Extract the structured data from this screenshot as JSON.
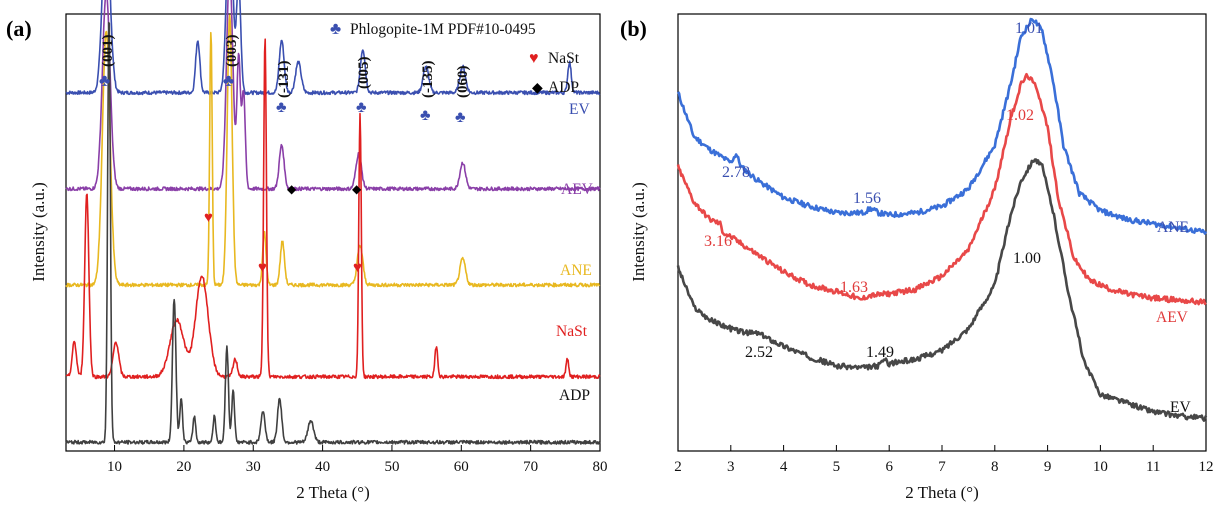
{
  "panels": [
    {
      "letter": "(a)",
      "xlabel": "2 Theta (°)",
      "ylabel": "Intensity (a.u.)",
      "x_ticks": [
        "10",
        "20",
        "30",
        "40",
        "50",
        "60",
        "70",
        "80"
      ],
      "legend": [
        {
          "symbol": "club",
          "color": "#3a4fb0",
          "text": "Phlogopite-1M PDF#10-0495"
        },
        {
          "symbol": "heart",
          "color": "#e02020",
          "text": "NaSt"
        },
        {
          "symbol": "diamond",
          "color": "#000000",
          "text": "ADP"
        }
      ],
      "peak_tags": [
        "(001)",
        "(003)",
        "(-131)",
        "(005)",
        "(-135)",
        "(060)"
      ],
      "series_labels": [
        "EV",
        "AEV",
        "ANE",
        "NaSt",
        "ADP"
      ]
    },
    {
      "letter": "(b)",
      "xlabel": "2 Theta (°)",
      "ylabel": "Intensity (a.u.)",
      "x_ticks": [
        "2",
        "3",
        "4",
        "5",
        "6",
        "7",
        "8",
        "9",
        "10",
        "11",
        "12"
      ],
      "series_labels": [
        "ANE",
        "AEV",
        "EV"
      ],
      "annotations": [
        {
          "text": "1.01",
          "color": "#3a4fb0"
        },
        {
          "text": "2.78",
          "color": "#3a4fb0"
        },
        {
          "text": "1.56",
          "color": "#3a4fb0"
        },
        {
          "text": "1.02",
          "color": "#e03a3a"
        },
        {
          "text": "3.16",
          "color": "#e03a3a"
        },
        {
          "text": "1.63",
          "color": "#e03a3a"
        },
        {
          "text": "1.00",
          "color": "#111111"
        },
        {
          "text": "2.52",
          "color": "#111111"
        },
        {
          "text": "1.49",
          "color": "#111111"
        }
      ]
    }
  ],
  "chart_data": [
    {
      "type": "line",
      "xlabel": "2 Theta (°)",
      "ylabel": "Intensity (a.u.)",
      "xlim": [
        3,
        80
      ],
      "x_ticks": [
        10,
        20,
        30,
        40,
        50,
        60,
        70,
        80
      ],
      "y_ticks_shown": false,
      "grid": false,
      "legend_position": "top-right",
      "legend": [
        "Phlogopite-1M PDF#10-0495",
        "NaSt",
        "ADP"
      ],
      "series": [
        {
          "name": "EV",
          "color": "#3a4fb0",
          "baseline": 0.82,
          "peaks": [
            [
              8.8,
              0.4,
              0.55
            ],
            [
              22.0,
              0.12,
              0.3
            ],
            [
              26.6,
              0.42,
              0.45
            ],
            [
              27.9,
              0.25,
              0.3
            ],
            [
              34.1,
              0.12,
              0.35
            ],
            [
              36.5,
              0.07,
              0.4
            ],
            [
              45.8,
              0.1,
              0.35
            ],
            [
              54.9,
              0.06,
              0.4
            ],
            [
              60.2,
              0.06,
              0.4
            ],
            [
              75.6,
              0.07,
              0.25
            ]
          ]
        },
        {
          "name": "AEV",
          "color": "#8a3fa8",
          "baseline": 0.6,
          "peaks": [
            [
              8.8,
              0.45,
              0.55
            ],
            [
              26.6,
              0.5,
              0.45
            ],
            [
              27.9,
              0.3,
              0.25
            ],
            [
              28.6,
              0.22,
              0.25
            ],
            [
              34.1,
              0.1,
              0.35
            ],
            [
              45.2,
              0.08,
              0.4
            ],
            [
              60.2,
              0.06,
              0.4
            ]
          ]
        },
        {
          "name": "ANE",
          "color": "#e8b820",
          "baseline": 0.38,
          "peaks": [
            [
              8.8,
              0.58,
              0.55
            ],
            [
              23.9,
              0.58,
              0.18
            ],
            [
              26.6,
              0.62,
              0.35
            ],
            [
              31.6,
              0.12,
              0.25
            ],
            [
              34.2,
              0.1,
              0.3
            ],
            [
              45.4,
              0.09,
              0.4
            ],
            [
              60.2,
              0.06,
              0.4
            ]
          ]
        },
        {
          "name": "NaSt",
          "color": "#e02020",
          "baseline": 0.17,
          "peaks": [
            [
              4.2,
              0.08,
              0.3
            ],
            [
              6.0,
              0.42,
              0.3
            ],
            [
              10.2,
              0.08,
              0.4
            ],
            [
              19.0,
              0.13,
              1.0
            ],
            [
              22.6,
              0.23,
              0.9
            ],
            [
              27.4,
              0.04,
              0.3
            ],
            [
              31.7,
              0.78,
              0.2
            ],
            [
              45.4,
              0.6,
              0.18
            ],
            [
              56.4,
              0.07,
              0.2
            ],
            [
              75.3,
              0.04,
              0.2
            ]
          ]
        },
        {
          "name": "ADP",
          "color": "#404040",
          "baseline": 0.02,
          "peaks": [
            [
              9.2,
              0.98,
              0.2
            ],
            [
              18.6,
              0.33,
              0.25
            ],
            [
              19.6,
              0.1,
              0.2
            ],
            [
              21.5,
              0.06,
              0.2
            ],
            [
              24.4,
              0.06,
              0.2
            ],
            [
              26.2,
              0.22,
              0.22
            ],
            [
              27.1,
              0.12,
              0.2
            ],
            [
              31.4,
              0.07,
              0.3
            ],
            [
              33.8,
              0.1,
              0.3
            ],
            [
              38.3,
              0.05,
              0.4
            ]
          ]
        }
      ]
    },
    {
      "type": "line",
      "xlabel": "2 Theta (°)",
      "ylabel": "Intensity (a.u.)",
      "xlim": [
        2,
        12
      ],
      "x_ticks": [
        2,
        3,
        4,
        5,
        6,
        7,
        8,
        9,
        10,
        11,
        12
      ],
      "y_ticks_shown": false,
      "grid": false,
      "series": [
        {
          "name": "ANE",
          "color": "#3a6fd8",
          "points": [
            [
              2.0,
              0.82
            ],
            [
              2.3,
              0.72
            ],
            [
              2.6,
              0.69
            ],
            [
              3.0,
              0.66
            ],
            [
              3.1,
              0.68
            ],
            [
              3.2,
              0.65
            ],
            [
              3.5,
              0.62
            ],
            [
              4.0,
              0.58
            ],
            [
              4.5,
              0.56
            ],
            [
              5.0,
              0.545
            ],
            [
              5.5,
              0.545
            ],
            [
              5.65,
              0.555
            ],
            [
              5.8,
              0.545
            ],
            [
              6.0,
              0.54
            ],
            [
              6.5,
              0.545
            ],
            [
              7.0,
              0.56
            ],
            [
              7.5,
              0.6
            ],
            [
              8.0,
              0.7
            ],
            [
              8.3,
              0.84
            ],
            [
              8.5,
              0.95
            ],
            [
              8.72,
              0.99
            ],
            [
              8.9,
              0.96
            ],
            [
              9.1,
              0.85
            ],
            [
              9.3,
              0.7
            ],
            [
              9.6,
              0.59
            ],
            [
              10.0,
              0.55
            ],
            [
              10.5,
              0.53
            ],
            [
              11.0,
              0.52
            ],
            [
              11.5,
              0.51
            ],
            [
              12.0,
              0.5
            ]
          ]
        },
        {
          "name": "AEV",
          "color": "#e84848",
          "points": [
            [
              2.0,
              0.65
            ],
            [
              2.3,
              0.57
            ],
            [
              2.6,
              0.53
            ],
            [
              2.8,
              0.52
            ],
            [
              2.85,
              0.5
            ],
            [
              3.0,
              0.49
            ],
            [
              3.5,
              0.45
            ],
            [
              4.0,
              0.41
            ],
            [
              4.5,
              0.38
            ],
            [
              5.0,
              0.365
            ],
            [
              5.3,
              0.355
            ],
            [
              5.45,
              0.345
            ],
            [
              5.6,
              0.355
            ],
            [
              6.0,
              0.36
            ],
            [
              6.5,
              0.37
            ],
            [
              7.0,
              0.4
            ],
            [
              7.5,
              0.46
            ],
            [
              8.0,
              0.6
            ],
            [
              8.3,
              0.76
            ],
            [
              8.5,
              0.84
            ],
            [
              8.62,
              0.86
            ],
            [
              8.8,
              0.83
            ],
            [
              9.0,
              0.74
            ],
            [
              9.2,
              0.58
            ],
            [
              9.5,
              0.44
            ],
            [
              9.8,
              0.39
            ],
            [
              10.2,
              0.37
            ],
            [
              10.5,
              0.36
            ],
            [
              11.0,
              0.35
            ],
            [
              11.5,
              0.345
            ],
            [
              12.0,
              0.34
            ]
          ]
        },
        {
          "name": "EV",
          "color": "#474747",
          "points": [
            [
              2.0,
              0.42
            ],
            [
              2.3,
              0.33
            ],
            [
              2.6,
              0.3
            ],
            [
              3.0,
              0.28
            ],
            [
              3.3,
              0.27
            ],
            [
              3.5,
              0.27
            ],
            [
              4.0,
              0.24
            ],
            [
              4.5,
              0.215
            ],
            [
              5.0,
              0.195
            ],
            [
              5.5,
              0.19
            ],
            [
              5.8,
              0.195
            ],
            [
              5.9,
              0.21
            ],
            [
              6.0,
              0.2
            ],
            [
              6.5,
              0.21
            ],
            [
              7.0,
              0.23
            ],
            [
              7.5,
              0.28
            ],
            [
              8.0,
              0.38
            ],
            [
              8.3,
              0.54
            ],
            [
              8.5,
              0.62
            ],
            [
              8.75,
              0.67
            ],
            [
              8.9,
              0.65
            ],
            [
              9.1,
              0.55
            ],
            [
              9.4,
              0.36
            ],
            [
              9.7,
              0.2
            ],
            [
              10.0,
              0.13
            ],
            [
              10.5,
              0.11
            ],
            [
              11.0,
              0.09
            ],
            [
              11.5,
              0.08
            ],
            [
              12.0,
              0.075
            ]
          ]
        }
      ]
    }
  ]
}
